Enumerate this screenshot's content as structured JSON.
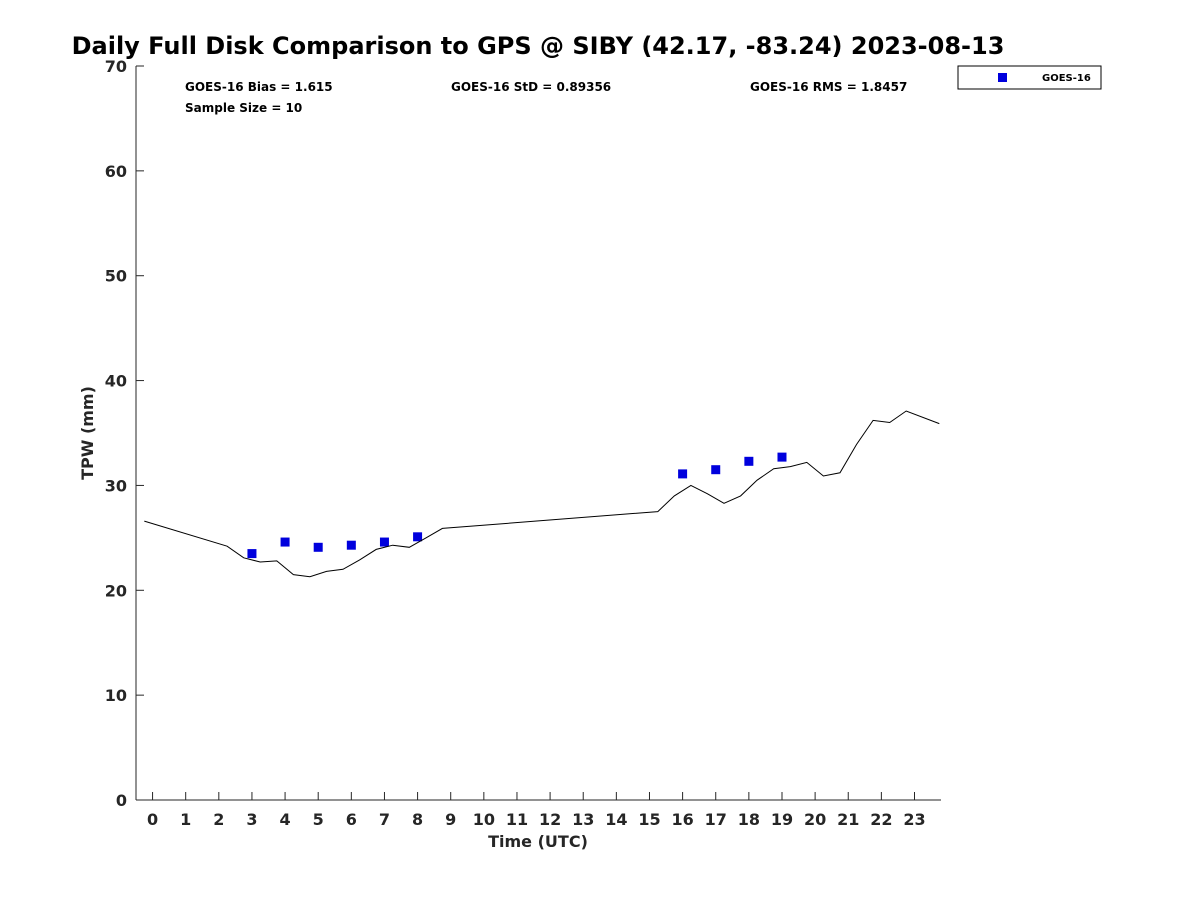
{
  "chart_data": {
    "type": "scatter",
    "title": "Daily Full Disk Comparison to GPS @ SIBY (42.17, -83.24) 2023-08-13",
    "xlabel": "Time (UTC)",
    "ylabel": "TPW (mm)",
    "xlim": [
      -0.5,
      23.8
    ],
    "ylim": [
      0,
      70
    ],
    "x_ticks": [
      "0",
      "1",
      "2",
      "3",
      "4",
      "5",
      "6",
      "7",
      "8",
      "9",
      "10",
      "11",
      "12",
      "13",
      "14",
      "15",
      "16",
      "17",
      "18",
      "19",
      "20",
      "21",
      "22",
      "23"
    ],
    "y_ticks": [
      "0",
      "10",
      "20",
      "30",
      "40",
      "50",
      "60",
      "70"
    ],
    "grid": false,
    "legend_position": "top-right",
    "stats": {
      "bias": "GOES-16 Bias = 1.615",
      "std": "GOES-16 StD = 0.89356",
      "rms": "GOES-16 RMS = 1.8457",
      "sample": "Sample Size = 10"
    },
    "series": [
      {
        "name": "GOES-16",
        "kind": "scatter",
        "marker": "square",
        "color": "#0000dd",
        "x": [
          3,
          4,
          5,
          6,
          7,
          8,
          16,
          17,
          18,
          19
        ],
        "y": [
          23.5,
          24.6,
          24.1,
          24.3,
          24.6,
          25.1,
          31.1,
          31.5,
          32.3,
          32.7
        ]
      },
      {
        "kind": "line",
        "color": "#000000",
        "x": [
          -0.25,
          2.25,
          2.75,
          3.25,
          3.75,
          4.25,
          4.75,
          5.25,
          5.75,
          6.25,
          6.75,
          7.25,
          7.75,
          8.25,
          8.75,
          15.25,
          15.75,
          16.25,
          16.75,
          17.25,
          17.75,
          18.25,
          18.75,
          19.25,
          19.75,
          20.25,
          20.75,
          21.25,
          21.75,
          22.25,
          22.75,
          23.75
        ],
        "y": [
          26.6,
          24.2,
          23.1,
          22.7,
          22.8,
          21.5,
          21.3,
          21.8,
          22.0,
          22.9,
          23.9,
          24.3,
          24.1,
          25.0,
          25.9,
          27.5,
          29.0,
          30.0,
          29.2,
          28.3,
          29.0,
          30.5,
          31.6,
          31.8,
          32.2,
          30.9,
          31.2,
          33.9,
          36.2,
          36.0,
          37.1,
          35.9
        ]
      }
    ]
  }
}
